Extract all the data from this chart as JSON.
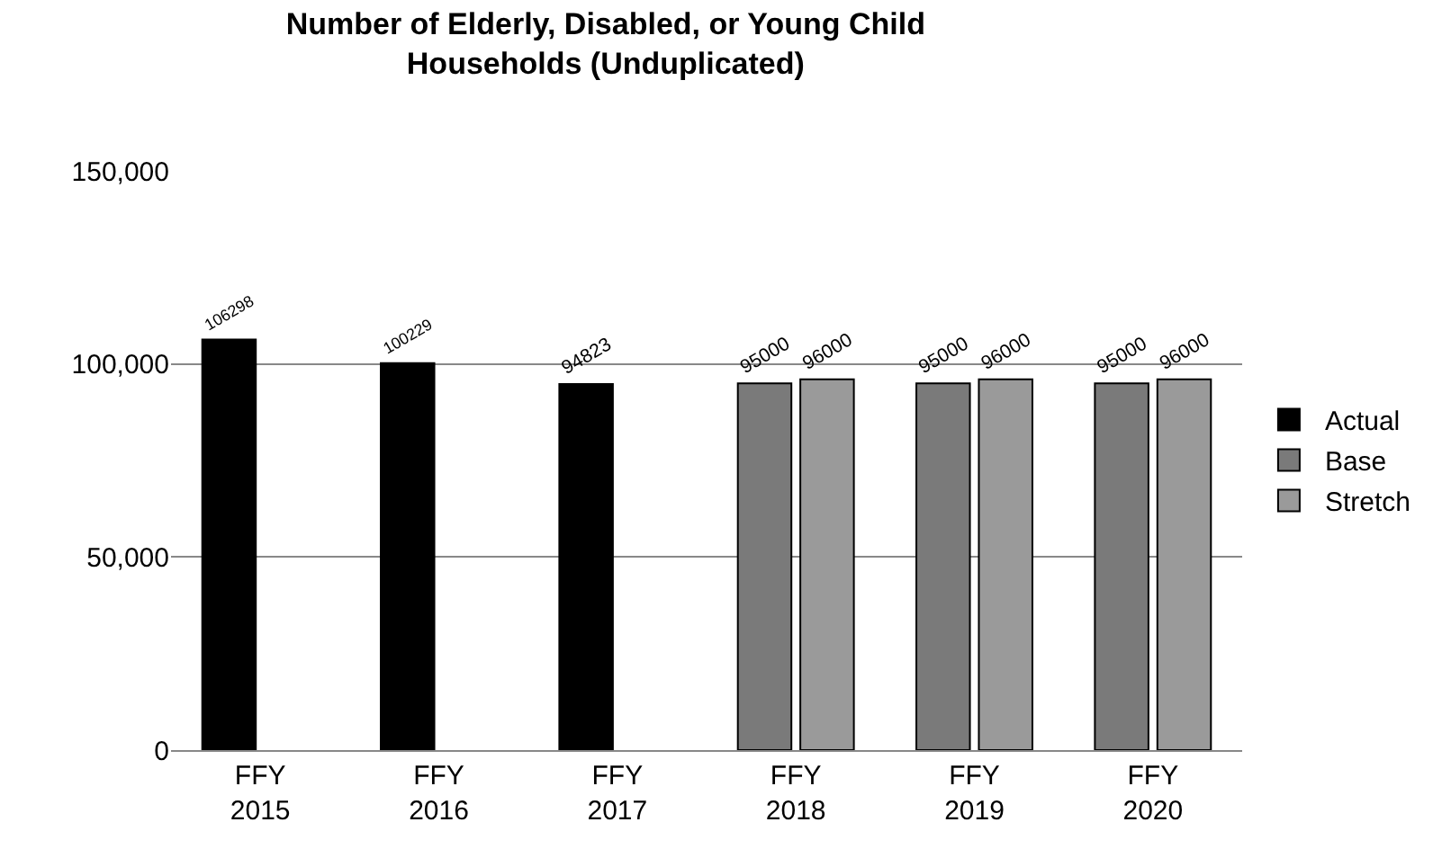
{
  "chart_data": {
    "type": "bar",
    "title": "Number of Elderly, Disabled, or Young Child\nHouseholds (Unduplicated)",
    "categories": [
      "FFY 2015",
      "FFY 2016",
      "FFY 2017",
      "FFY 2018",
      "FFY 2019",
      "FFY 2020"
    ],
    "series": [
      {
        "name": "Actual",
        "color": "#000000",
        "values": [
          106298,
          100229,
          94823,
          null,
          null,
          null
        ]
      },
      {
        "name": "Base",
        "color": "#7a7a7a",
        "values": [
          null,
          null,
          null,
          95000,
          95000,
          95000
        ]
      },
      {
        "name": "Stretch",
        "color": "#9a9a9a",
        "values": [
          null,
          null,
          null,
          96000,
          96000,
          96000
        ]
      }
    ],
    "ylim": [
      0,
      150000
    ],
    "yticks": [
      {
        "value": 0,
        "label": "0"
      },
      {
        "value": 50000,
        "label": "50,000"
      },
      {
        "value": 100000,
        "label": "100,000"
      },
      {
        "value": 150000,
        "label": "150,000"
      }
    ],
    "grid": "y",
    "legend": "right",
    "data_labels": true
  }
}
